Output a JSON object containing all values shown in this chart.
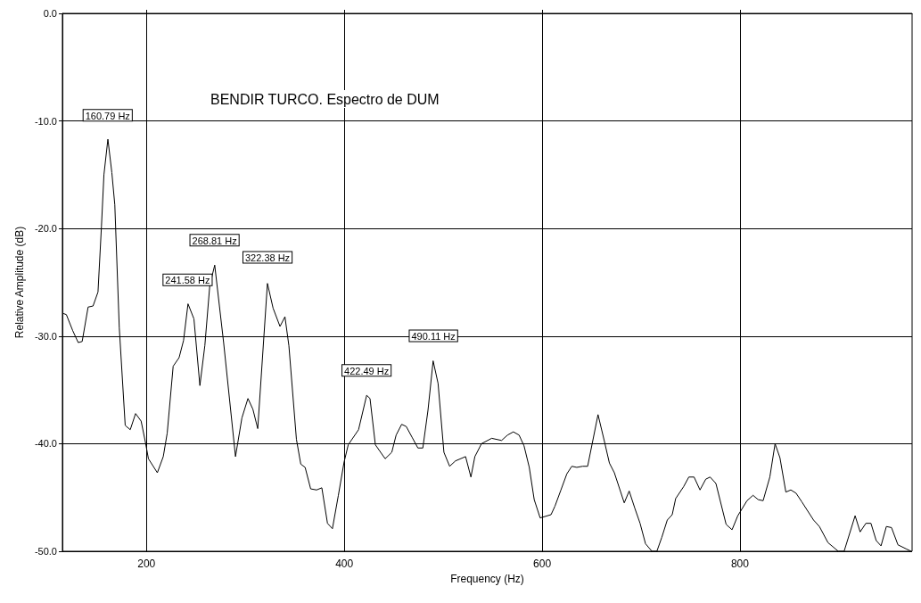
{
  "chart_data": {
    "type": "line",
    "title": "BENDIR TURCO. Espectro de DUM",
    "xlabel": "Frequency (Hz)",
    "ylabel": "Relative Amplitude (dB)",
    "xlim": [
      115,
      974
    ],
    "ylim": [
      -50,
      0
    ],
    "xticks": [
      200,
      400,
      600,
      800
    ],
    "yticks": [
      {
        "value": -50,
        "label": "-50.0"
      },
      {
        "value": -40,
        "label": "-40.0"
      },
      {
        "value": -30,
        "label": "-30.0"
      },
      {
        "value": -20,
        "label": "-20.0"
      },
      {
        "value": -10,
        "label": "-10.0"
      },
      {
        "value": 0,
        "label": "0.0"
      }
    ],
    "grid": true,
    "marker": "none",
    "line_style": "solid",
    "annotations": [
      {
        "text": "160.79 Hz",
        "x": 160.79,
        "y": -11.8
      },
      {
        "text": "241.58 Hz",
        "x": 241.58,
        "y": -27.1
      },
      {
        "text": "268.81 Hz",
        "x": 268.81,
        "y": -23.4
      },
      {
        "text": "322.38 Hz",
        "x": 322.38,
        "y": -25.0
      },
      {
        "text": "422.49 Hz",
        "x": 422.49,
        "y": -35.5
      },
      {
        "text": "490.11 Hz",
        "x": 490.11,
        "y": -32.3
      }
    ],
    "series": [
      {
        "color": "#000000",
        "x": [
          116,
          119,
          125.5,
          131,
          135,
          141,
          146,
          151,
          154.5,
          157,
          161,
          165,
          168,
          172.5,
          178.5,
          183.6,
          189,
          194.6,
          198.8,
          202,
          211,
          217,
          221,
          227,
          233,
          237.5,
          242,
          248,
          254,
          259,
          264,
          269,
          278,
          290,
          296.5,
          302.6,
          307.6,
          312.5,
          322.3,
          328,
          335,
          340,
          344,
          351.6,
          356,
          360.4,
          366,
          372,
          377.3,
          383,
          388,
          394,
          399.8,
          404,
          414.4,
          422.6,
          426,
          431.4,
          441.3,
          448,
          452.4,
          458,
          462.6,
          468.5,
          474.4,
          479.4,
          484.6,
          489.8,
          494.8,
          500.7,
          506.5,
          512.4,
          522.6,
          528,
          532,
          538.7,
          549,
          559,
          565,
          570.9,
          576.7,
          581.7,
          587,
          592,
          598,
          609,
          613,
          619,
          625,
          630,
          635,
          641,
          646,
          656.5,
          663,
          668,
          673,
          683,
          688,
          693.7,
          699,
          704.5,
          711,
          716,
          721,
          726.5,
          731.5,
          735,
          743,
          748.3,
          753.6,
          759.6,
          765.4,
          769.8,
          775.7,
          786,
          792,
          797.8,
          807.1,
          813.2,
          818.4,
          823.4,
          830.2,
          835.5,
          840.4,
          846.4,
          851.4,
          856.7,
          862.5,
          874.4,
          880.3,
          889,
          899.4,
          905.3,
          916.4,
          921.5,
          927.3,
          932.4,
          937.7,
          942.6,
          948,
          953.2,
          959.7,
          968.5,
          973
        ],
        "values": [
          -27.9,
          -28.0,
          -29.5,
          -30.6,
          -30.5,
          -27.3,
          -27.2,
          -25.9,
          -19.8,
          -15.0,
          -11.7,
          -14.8,
          -17.8,
          -29.2,
          -38.3,
          -38.7,
          -37.2,
          -37.9,
          -39.8,
          -41.4,
          -42.7,
          -41.2,
          -39.0,
          -32.8,
          -32.0,
          -30.4,
          -27.0,
          -28.4,
          -34.6,
          -30.9,
          -25.3,
          -23.4,
          -30.6,
          -41.2,
          -37.6,
          -35.8,
          -36.8,
          -38.6,
          -25.1,
          -27.4,
          -29.1,
          -28.2,
          -30.9,
          -39.6,
          -41.9,
          -42.2,
          -44.2,
          -44.3,
          -44.1,
          -47.4,
          -47.9,
          -44.8,
          -41.7,
          -40.1,
          -38.7,
          -35.5,
          -35.8,
          -40.1,
          -41.4,
          -40.8,
          -39.2,
          -38.2,
          -38.4,
          -39.4,
          -40.4,
          -40.4,
          -36.9,
          -32.3,
          -34.4,
          -40.8,
          -42.1,
          -41.6,
          -41.2,
          -43.1,
          -41.2,
          -40.0,
          -39.5,
          -39.7,
          -39.2,
          -38.9,
          -39.2,
          -40.2,
          -42.2,
          -45.2,
          -46.9,
          -46.6,
          -45.8,
          -44.3,
          -42.8,
          -42.1,
          -42.2,
          -42.1,
          -42.1,
          -37.3,
          -39.8,
          -41.8,
          -42.7,
          -45.5,
          -44.4,
          -46.0,
          -47.4,
          -49.3,
          -50.0,
          -50.0,
          -48.7,
          -47.1,
          -46.6,
          -45.1,
          -44.0,
          -43.1,
          -43.1,
          -44.3,
          -43.3,
          -43.1,
          -43.7,
          -47.5,
          -48.0,
          -46.7,
          -45.3,
          -44.8,
          -45.2,
          -45.3,
          -43.1,
          -40.0,
          -41.3,
          -44.5,
          -44.3,
          -44.6,
          -45.4,
          -47.1,
          -47.7,
          -49.2,
          -50.0,
          -50.0,
          -46.7,
          -48.2,
          -47.4,
          -47.4,
          -49.0,
          -49.5,
          -47.7,
          -47.8,
          -49.4,
          -49.8,
          -50.0
        ]
      }
    ]
  }
}
